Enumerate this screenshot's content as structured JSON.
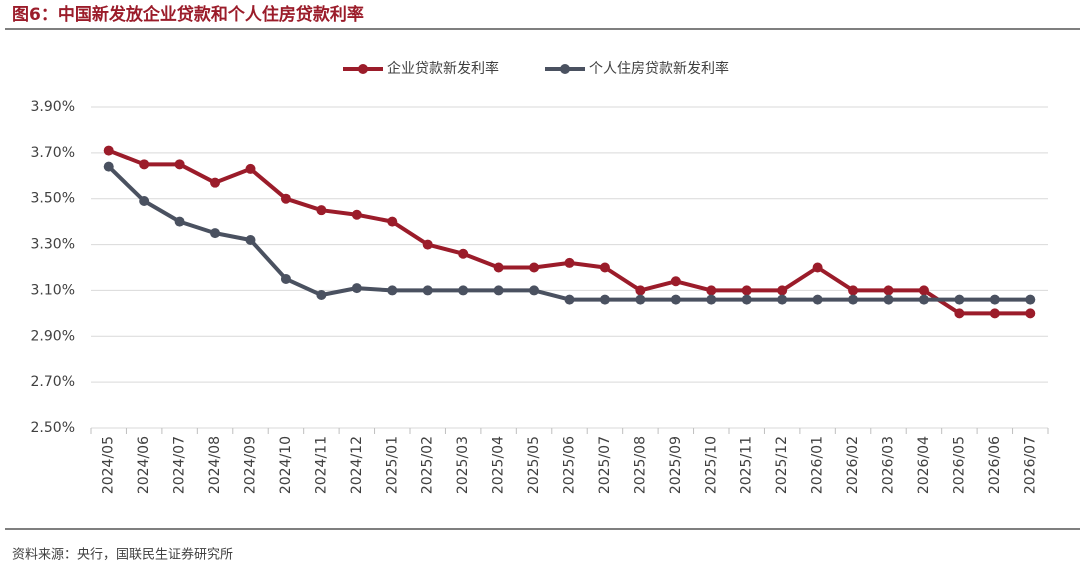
{
  "chart_data": {
    "type": "line",
    "title": "图6：中国新发放企业贷款和个人住房贷款利率",
    "source": "资料来源：央行，国联民生证券研究所",
    "categories": [
      "2024/05",
      "2024/06",
      "2024/07",
      "2024/08",
      "2024/09",
      "2024/10",
      "2024/11",
      "2024/12",
      "2025/01",
      "2025/02",
      "2025/03",
      "2025/04",
      "2025/05",
      "2025/06",
      "2025/07",
      "2025/08",
      "2025/09",
      "2025/10",
      "2025/11",
      "2025/12",
      "2026/01",
      "2026/02",
      "2026/03",
      "2026/04",
      "2026/05",
      "2026/06",
      "2026/07"
    ],
    "series": [
      {
        "name": "企业贷款新发利率",
        "color": "#9b1c2a",
        "values": [
          3.71,
          3.65,
          3.65,
          3.57,
          3.63,
          3.5,
          3.45,
          3.43,
          3.4,
          3.3,
          3.26,
          3.2,
          3.2,
          3.22,
          3.2,
          3.1,
          3.14,
          3.1,
          3.1,
          3.1,
          3.2,
          3.1,
          3.1,
          3.1,
          3.0,
          3.0,
          3.0
        ]
      },
      {
        "name": "个人住房贷款新发利率",
        "color": "#4a5160",
        "values": [
          3.64,
          3.49,
          3.4,
          3.35,
          3.32,
          3.15,
          3.08,
          3.11,
          3.1,
          3.1,
          3.1,
          3.1,
          3.1,
          3.06,
          3.06,
          3.06,
          3.06,
          3.06,
          3.06,
          3.06,
          3.06,
          3.06,
          3.06,
          3.06,
          3.06,
          3.06,
          3.06
        ]
      }
    ],
    "ylim": [
      2.5,
      3.9
    ],
    "yticks": [
      {
        "value": 2.5,
        "label": "2.50%"
      },
      {
        "value": 2.7,
        "label": "2.70%"
      },
      {
        "value": 2.9,
        "label": "2.90%"
      },
      {
        "value": 3.1,
        "label": "3.10%"
      },
      {
        "value": 3.3,
        "label": "3.30%"
      },
      {
        "value": 3.5,
        "label": "3.50%"
      },
      {
        "value": 3.7,
        "label": "3.70%"
      },
      {
        "value": 3.9,
        "label": "3.90%"
      }
    ],
    "grid": true,
    "legend": "top"
  }
}
